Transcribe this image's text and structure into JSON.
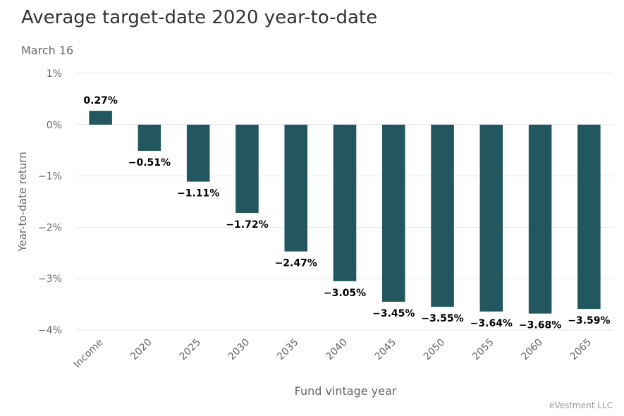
{
  "title": "Average target-date 2020 year-to-date",
  "subtitle": "March 16",
  "credit": "eVestment LLC",
  "chart_data": {
    "type": "bar",
    "categories": [
      "Income",
      "2020",
      "2025",
      "2030",
      "2035",
      "2040",
      "2045",
      "2050",
      "2055",
      "2060",
      "2065"
    ],
    "values": [
      0.27,
      -0.51,
      -1.11,
      -1.72,
      -2.47,
      -3.05,
      -3.45,
      -3.55,
      -3.64,
      -3.68,
      -3.59
    ],
    "data_labels": [
      "0.27%",
      "−0.51%",
      "−1.11%",
      "−1.72%",
      "−2.47%",
      "−3.05%",
      "−3.45%",
      "−3.55%",
      "−3.64%",
      "−3.68%",
      "−3.59%"
    ],
    "xlabel": "Fund vintage year",
    "ylabel": "Year-to-date return",
    "ylim": [
      -4,
      1
    ],
    "yticks": [
      1,
      0,
      -1,
      -2,
      -3,
      -4
    ],
    "ytick_labels": [
      "1%",
      "0%",
      "−1%",
      "−2%",
      "−3%",
      "−4%"
    ],
    "bar_color": "#225760",
    "grid": true
  }
}
